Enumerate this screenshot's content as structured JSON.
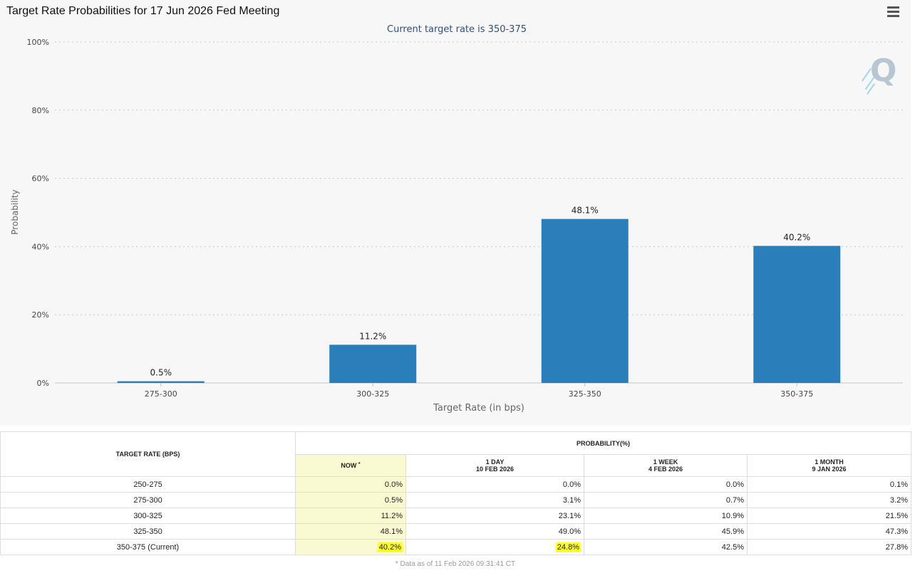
{
  "title": "Target Rate Probabilities for 17 Jun 2026 Fed Meeting",
  "chart_data": {
    "type": "bar",
    "subtitle": "Current target rate is 350-375",
    "xlabel": "Target Rate (in bps)",
    "ylabel": "Probability",
    "ylim": [
      0,
      100
    ],
    "yticks": [
      "0%",
      "20%",
      "40%",
      "60%",
      "80%",
      "100%"
    ],
    "ytick_values": [
      0,
      20,
      40,
      60,
      80,
      100
    ],
    "grid": true,
    "categories": [
      "275-300",
      "300-325",
      "325-350",
      "350-375"
    ],
    "values": [
      0.5,
      11.2,
      48.1,
      40.2
    ],
    "data_labels": [
      "0.5%",
      "11.2%",
      "48.1%",
      "40.2%"
    ],
    "bar_color": "#2a7fba"
  },
  "table": {
    "col_rate_header": "TARGET RATE (BPS)",
    "group_header": "PROBABILITY(%)",
    "now_header": "NOW",
    "now_marker": "*",
    "day_header": "1 DAY",
    "day_date": "10 FEB 2026",
    "week_header": "1 WEEK",
    "week_date": "4 FEB 2026",
    "month_header": "1 MONTH",
    "month_date": "9 JAN 2026",
    "rows": [
      {
        "rate": "250-275",
        "now": "0.0%",
        "day": "0.0%",
        "week": "0.0%",
        "month": "0.1%"
      },
      {
        "rate": "275-300",
        "now": "0.5%",
        "day": "3.1%",
        "week": "0.7%",
        "month": "3.2%"
      },
      {
        "rate": "300-325",
        "now": "11.2%",
        "day": "23.1%",
        "week": "10.9%",
        "month": "21.5%"
      },
      {
        "rate": "325-350",
        "now": "48.1%",
        "day": "49.0%",
        "week": "45.9%",
        "month": "47.3%"
      },
      {
        "rate": "350-375 (Current)",
        "now": "40.2%",
        "day": "24.8%",
        "week": "42.5%",
        "month": "27.8%"
      }
    ]
  },
  "footnote": "* Data as of 11 Feb 2026 09:31:41 CT",
  "colors": {
    "highlight": "#ffff2a",
    "now_column": "#fafad2"
  }
}
